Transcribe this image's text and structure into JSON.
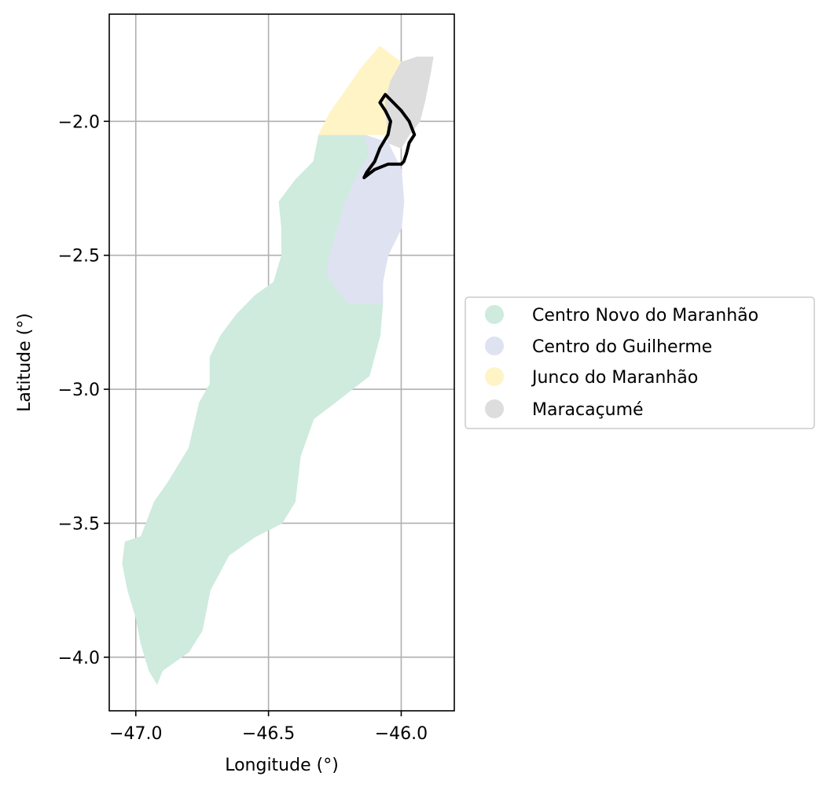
{
  "chart_data": {
    "type": "map",
    "xlabel": "Longitude (°)",
    "ylabel": "Latitude (°)",
    "xlim": [
      -47.1,
      -45.8
    ],
    "ylim": [
      -4.2,
      -1.6
    ],
    "xticks": [
      -47.0,
      -46.5,
      -46.0
    ],
    "xtick_labels": [
      "−47.0",
      "−46.5",
      "−46.0"
    ],
    "yticks": [
      -2.0,
      -2.5,
      -3.0,
      -3.5,
      -4.0
    ],
    "ytick_labels": [
      "−2.0",
      "−2.5",
      "−3.0",
      "−3.5",
      "−4.0"
    ],
    "grid": true,
    "legend_position": "center-right outside",
    "regions": [
      {
        "name": "Centro Novo do Maranhão",
        "color": "#ceebdd",
        "outline": [
          [
            -46.31,
            -2.05
          ],
          [
            -46.14,
            -2.05
          ],
          [
            -46.12,
            -2.12
          ],
          [
            -46.17,
            -2.21
          ],
          [
            -46.21,
            -2.3
          ],
          [
            -46.24,
            -2.4
          ],
          [
            -46.27,
            -2.5
          ],
          [
            -46.28,
            -2.57
          ],
          [
            -46.24,
            -2.63
          ],
          [
            -46.2,
            -2.68
          ],
          [
            -46.07,
            -2.68
          ],
          [
            -46.08,
            -2.8
          ],
          [
            -46.12,
            -2.95
          ],
          [
            -46.25,
            -3.05
          ],
          [
            -46.33,
            -3.11
          ],
          [
            -46.38,
            -3.25
          ],
          [
            -46.4,
            -3.42
          ],
          [
            -46.45,
            -3.5
          ],
          [
            -46.55,
            -3.55
          ],
          [
            -46.65,
            -3.62
          ],
          [
            -46.72,
            -3.75
          ],
          [
            -46.75,
            -3.9
          ],
          [
            -46.8,
            -3.98
          ],
          [
            -46.9,
            -4.05
          ],
          [
            -46.92,
            -4.1
          ],
          [
            -46.95,
            -4.05
          ],
          [
            -46.98,
            -3.95
          ],
          [
            -47.0,
            -3.85
          ],
          [
            -47.03,
            -3.75
          ],
          [
            -47.05,
            -3.65
          ],
          [
            -47.04,
            -3.57
          ],
          [
            -46.98,
            -3.55
          ],
          [
            -46.93,
            -3.42
          ],
          [
            -46.88,
            -3.35
          ],
          [
            -46.8,
            -3.22
          ],
          [
            -46.76,
            -3.05
          ],
          [
            -46.72,
            -2.98
          ],
          [
            -46.72,
            -2.88
          ],
          [
            -46.68,
            -2.8
          ],
          [
            -46.62,
            -2.72
          ],
          [
            -46.55,
            -2.65
          ],
          [
            -46.48,
            -2.6
          ],
          [
            -46.45,
            -2.5
          ],
          [
            -46.45,
            -2.4
          ],
          [
            -46.46,
            -2.3
          ],
          [
            -46.4,
            -2.22
          ],
          [
            -46.33,
            -2.15
          ]
        ]
      },
      {
        "name": "Centro do Guilherme",
        "color": "#dfe2f0",
        "outline": [
          [
            -46.14,
            -2.05
          ],
          [
            -46.05,
            -2.08
          ],
          [
            -46.0,
            -2.18
          ],
          [
            -45.99,
            -2.3
          ],
          [
            -46.0,
            -2.4
          ],
          [
            -46.05,
            -2.5
          ],
          [
            -46.07,
            -2.6
          ],
          [
            -46.07,
            -2.68
          ],
          [
            -46.2,
            -2.68
          ],
          [
            -46.24,
            -2.63
          ],
          [
            -46.28,
            -2.57
          ],
          [
            -46.27,
            -2.5
          ],
          [
            -46.24,
            -2.4
          ],
          [
            -46.21,
            -2.3
          ],
          [
            -46.17,
            -2.21
          ],
          [
            -46.12,
            -2.12
          ]
        ]
      },
      {
        "name": "Junco do Maranhão",
        "color": "#fff4c6",
        "outline": [
          [
            -46.31,
            -2.05
          ],
          [
            -46.27,
            -1.97
          ],
          [
            -46.22,
            -1.9
          ],
          [
            -46.15,
            -1.8
          ],
          [
            -46.08,
            -1.72
          ],
          [
            -46.0,
            -1.78
          ],
          [
            -46.04,
            -1.85
          ],
          [
            -46.06,
            -1.93
          ],
          [
            -46.05,
            -2.05
          ],
          [
            -46.14,
            -2.05
          ]
        ]
      },
      {
        "name": "Maracaçumé",
        "color": "#dddddd",
        "outline": [
          [
            -46.05,
            -2.05
          ],
          [
            -46.06,
            -1.93
          ],
          [
            -46.04,
            -1.85
          ],
          [
            -46.0,
            -1.78
          ],
          [
            -45.94,
            -1.76
          ],
          [
            -45.88,
            -1.76
          ],
          [
            -45.89,
            -1.82
          ],
          [
            -45.91,
            -1.92
          ],
          [
            -45.93,
            -2.0
          ],
          [
            -45.97,
            -2.05
          ],
          [
            -46.0,
            -2.1
          ],
          [
            -46.05,
            -2.08
          ]
        ]
      }
    ],
    "highlight_outline": [
      [
        -46.06,
        -1.9
      ],
      [
        -46.04,
        -1.92
      ],
      [
        -46.0,
        -1.96
      ],
      [
        -45.97,
        -2.0
      ],
      [
        -45.95,
        -2.05
      ],
      [
        -45.97,
        -2.08
      ],
      [
        -45.98,
        -2.12
      ],
      [
        -45.99,
        -2.15
      ],
      [
        -46.0,
        -2.16
      ],
      [
        -46.05,
        -2.16
      ],
      [
        -46.1,
        -2.18
      ],
      [
        -46.14,
        -2.21
      ],
      [
        -46.13,
        -2.19
      ],
      [
        -46.1,
        -2.15
      ],
      [
        -46.08,
        -2.1
      ],
      [
        -46.05,
        -2.05
      ],
      [
        -46.04,
        -2.0
      ],
      [
        -46.06,
        -1.96
      ],
      [
        -46.08,
        -1.93
      ]
    ],
    "legend": [
      {
        "label": "Centro Novo do Maranhão",
        "color": "#ceebdd"
      },
      {
        "label": "Centro do Guilherme",
        "color": "#dfe2f0"
      },
      {
        "label": "Junco do Maranhão",
        "color": "#fff4c6"
      },
      {
        "label": "Maracaçumé",
        "color": "#dddddd"
      }
    ]
  }
}
